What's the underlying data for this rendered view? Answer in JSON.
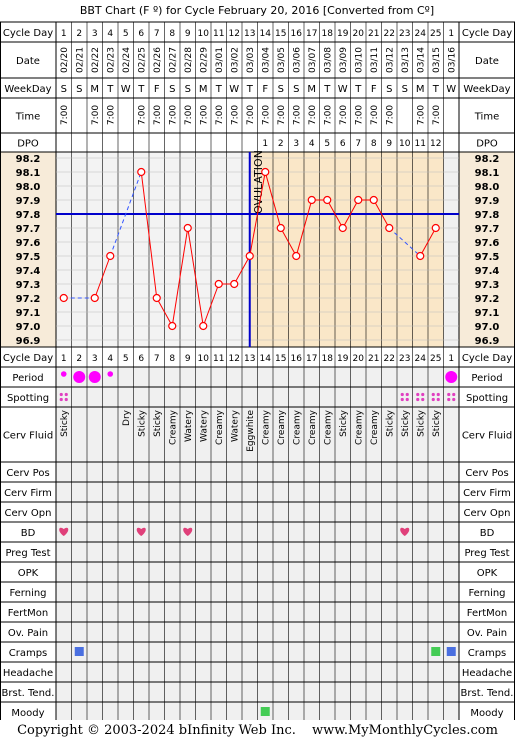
{
  "title": "BBT Chart (F º) for Cycle February 20, 2016  [Converted from Cº]",
  "labels": {
    "cycle_day": "Cycle Day",
    "date": "Date",
    "weekday": "WeekDay",
    "time": "Time",
    "dpo": "DPO",
    "period": "Period",
    "spotting": "Spotting",
    "cerv_fluid": "Cerv Fluid",
    "cerv_pos": "Cerv Pos",
    "cerv_firm": "Cerv Firm",
    "cerv_opn": "Cerv Opn",
    "bd": "BD",
    "preg_test": "Preg Test",
    "opk": "OPK",
    "ferning": "Ferning",
    "fertmon": "FertMon",
    "ov_pain": "Ov. Pain",
    "cramps": "Cramps",
    "headache": "Headache",
    "brst_tend": "Brst. Tend.",
    "moody": "Moody"
  },
  "ovulation_label": "OVULATION",
  "footer": {
    "copyright": "Copyright © 2003-2024 bInfinity Web Inc.",
    "site": "www.MyMonthlyCycles.com"
  },
  "colors": {
    "grid_bg": "#f0f0f0",
    "header_bg": "#f7ebd9",
    "luteal_bg": "#fae7c8",
    "temp_line": "#ff0000",
    "coverline": "#0000cc",
    "ovulation_line": "#0000cc",
    "period_dot": "#ff00ff",
    "spotting_dot": "#e040c0",
    "bd_heart": "#e0407a",
    "cramps_box": "#4a6fe0",
    "moody_box": "#44cc55"
  },
  "days": {
    "cycle_day": [
      "1",
      "2",
      "3",
      "4",
      "5",
      "6",
      "7",
      "8",
      "9",
      "10",
      "11",
      "12",
      "13",
      "14",
      "15",
      "16",
      "17",
      "18",
      "19",
      "20",
      "21",
      "22",
      "23",
      "24",
      "25",
      "1"
    ],
    "date": [
      "02/20",
      "02/21",
      "02/22",
      "02/23",
      "02/24",
      "02/25",
      "02/26",
      "02/27",
      "02/28",
      "02/29",
      "03/01",
      "03/02",
      "03/03",
      "03/04",
      "03/05",
      "03/06",
      "03/07",
      "03/08",
      "03/09",
      "03/10",
      "03/11",
      "03/12",
      "03/13",
      "03/14",
      "03/15",
      "03/16"
    ],
    "weekday": [
      "S",
      "S",
      "M",
      "T",
      "W",
      "T",
      "F",
      "S",
      "S",
      "M",
      "T",
      "W",
      "T",
      "F",
      "S",
      "S",
      "M",
      "T",
      "W",
      "T",
      "F",
      "S",
      "S",
      "M",
      "T",
      "W"
    ],
    "time": [
      "7:00",
      "",
      "7:00",
      "7:00",
      "",
      "7:00",
      "7:00",
      "7:00",
      "7:00",
      "7:00",
      "7:00",
      "7:00",
      "7:00",
      "7:00",
      "7:00",
      "7:00",
      "7:00",
      "7:00",
      "7:00",
      "7:00",
      "7:00",
      "7:00",
      "",
      "7:00",
      "7:00",
      ""
    ],
    "dpo": [
      "",
      "",
      "",
      "",
      "",
      "",
      "",
      "",
      "",
      "",
      "",
      "",
      "",
      "1",
      "2",
      "3",
      "4",
      "5",
      "6",
      "7",
      "8",
      "9",
      "10",
      "11",
      "12",
      ""
    ],
    "cerv_fluid": [
      "Sticky",
      "",
      "",
      "",
      "Dry",
      "Sticky",
      "Sticky",
      "Creamy",
      "Watery",
      "Watery",
      "Creamy",
      "Watery",
      "Eggwhite",
      "Creamy",
      "Creamy",
      "Creamy",
      "Creamy",
      "Creamy",
      "Sticky",
      "Creamy",
      "Creamy",
      "Sticky",
      "Sticky",
      "Sticky",
      "Sticky",
      ""
    ],
    "period": [
      "light",
      "heavy",
      "heavy",
      "light",
      "",
      "",
      "",
      "",
      "",
      "",
      "",
      "",
      "",
      "",
      "",
      "",
      "",
      "",
      "",
      "",
      "",
      "",
      "",
      "",
      "",
      "heavy"
    ],
    "spotting": [
      true,
      false,
      false,
      false,
      false,
      false,
      false,
      false,
      false,
      false,
      false,
      false,
      false,
      false,
      false,
      false,
      false,
      false,
      false,
      false,
      false,
      false,
      true,
      true,
      true,
      true
    ],
    "bd": [
      true,
      false,
      false,
      false,
      false,
      true,
      false,
      false,
      true,
      false,
      false,
      false,
      false,
      false,
      false,
      false,
      false,
      false,
      false,
      false,
      false,
      false,
      true,
      false,
      false,
      false
    ],
    "cramps": [
      false,
      true,
      false,
      false,
      false,
      false,
      false,
      false,
      false,
      false,
      false,
      false,
      false,
      false,
      false,
      false,
      false,
      false,
      false,
      false,
      false,
      false,
      false,
      false,
      true,
      true
    ],
    "moody": [
      false,
      false,
      false,
      false,
      false,
      false,
      false,
      false,
      false,
      false,
      false,
      false,
      false,
      true,
      false,
      false,
      false,
      false,
      false,
      false,
      false,
      false,
      false,
      false,
      false,
      false
    ]
  },
  "chart_data": {
    "type": "line",
    "title": "BBT Chart (F º) for Cycle February 20, 2016  [Converted from Cº]",
    "x": [
      1,
      2,
      3,
      4,
      5,
      6,
      7,
      8,
      9,
      10,
      11,
      12,
      13,
      14,
      15,
      16,
      17,
      18,
      19,
      20,
      21,
      22,
      23,
      24,
      25,
      26
    ],
    "x_tick_labels": [
      "1",
      "2",
      "3",
      "4",
      "5",
      "6",
      "7",
      "8",
      "9",
      "10",
      "11",
      "12",
      "13",
      "14",
      "15",
      "16",
      "17",
      "18",
      "19",
      "20",
      "21",
      "22",
      "23",
      "24",
      "25",
      "1"
    ],
    "series": [
      {
        "values": [
          97.2,
          null,
          97.2,
          97.5,
          null,
          98.1,
          97.2,
          97.0,
          97.7,
          97.0,
          97.3,
          97.3,
          97.5,
          98.1,
          97.7,
          97.5,
          97.9,
          97.9,
          97.7,
          97.9,
          97.9,
          97.7,
          null,
          97.5,
          97.7,
          null
        ]
      }
    ],
    "y_ticks": [
      98.2,
      98.1,
      98.0,
      97.9,
      97.8,
      97.7,
      97.6,
      97.5,
      97.4,
      97.3,
      97.2,
      97.1,
      97.0,
      96.9
    ],
    "ylim": [
      96.9,
      98.2
    ],
    "coverline": 97.8,
    "ovulation_day": 13,
    "grid": true,
    "legend": "none"
  }
}
